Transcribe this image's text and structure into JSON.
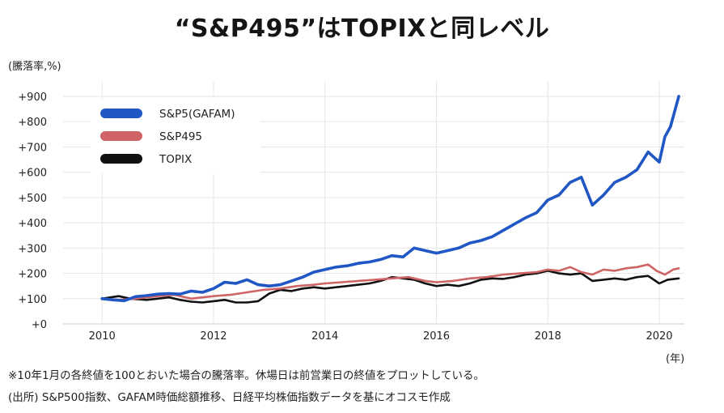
{
  "chart_data": {
    "type": "line",
    "title": "“S&P495”はTOPIXと同レベル",
    "ylabel": "(騰落率,%)",
    "xlabel": "(年)",
    "ylim": [
      0,
      900
    ],
    "xlim": [
      2009.3,
      2020.45
    ],
    "yticks": [
      0,
      100,
      200,
      300,
      400,
      500,
      600,
      700,
      800,
      900
    ],
    "ytick_labels": [
      "+0",
      "+100",
      "+200",
      "+300",
      "+400",
      "+500",
      "+600",
      "+700",
      "+800",
      "+900"
    ],
    "xticks": [
      2010,
      2012,
      2014,
      2016,
      2018,
      2020
    ],
    "xtick_labels": [
      "2010",
      "2012",
      "2014",
      "2016",
      "2018",
      "2020"
    ],
    "grid": true,
    "legend_position": "top-left",
    "series": [
      {
        "name": "S&P5(GAFAM)",
        "color": "#2057c4",
        "points": [
          [
            2010.0,
            100
          ],
          [
            2010.2,
            95
          ],
          [
            2010.4,
            92
          ],
          [
            2010.6,
            108
          ],
          [
            2010.8,
            112
          ],
          [
            2011.0,
            118
          ],
          [
            2011.2,
            120
          ],
          [
            2011.4,
            118
          ],
          [
            2011.6,
            130
          ],
          [
            2011.8,
            125
          ],
          [
            2012.0,
            140
          ],
          [
            2012.2,
            165
          ],
          [
            2012.4,
            160
          ],
          [
            2012.6,
            175
          ],
          [
            2012.8,
            155
          ],
          [
            2013.0,
            150
          ],
          [
            2013.2,
            155
          ],
          [
            2013.4,
            170
          ],
          [
            2013.6,
            185
          ],
          [
            2013.8,
            205
          ],
          [
            2014.0,
            215
          ],
          [
            2014.2,
            225
          ],
          [
            2014.4,
            230
          ],
          [
            2014.6,
            240
          ],
          [
            2014.8,
            245
          ],
          [
            2015.0,
            255
          ],
          [
            2015.2,
            270
          ],
          [
            2015.4,
            265
          ],
          [
            2015.6,
            300
          ],
          [
            2015.8,
            290
          ],
          [
            2016.0,
            280
          ],
          [
            2016.2,
            290
          ],
          [
            2016.4,
            300
          ],
          [
            2016.6,
            320
          ],
          [
            2016.8,
            330
          ],
          [
            2017.0,
            345
          ],
          [
            2017.2,
            370
          ],
          [
            2017.4,
            395
          ],
          [
            2017.6,
            420
          ],
          [
            2017.8,
            440
          ],
          [
            2018.0,
            490
          ],
          [
            2018.2,
            510
          ],
          [
            2018.4,
            560
          ],
          [
            2018.6,
            580
          ],
          [
            2018.8,
            470
          ],
          [
            2019.0,
            510
          ],
          [
            2019.2,
            560
          ],
          [
            2019.4,
            580
          ],
          [
            2019.6,
            610
          ],
          [
            2019.8,
            680
          ],
          [
            2020.0,
            640
          ],
          [
            2020.1,
            740
          ],
          [
            2020.2,
            780
          ],
          [
            2020.35,
            900
          ]
        ]
      },
      {
        "name": "S&P495",
        "color": "#cf6466",
        "points": [
          [
            2010.0,
            100
          ],
          [
            2010.3,
            95
          ],
          [
            2010.6,
            100
          ],
          [
            2010.8,
            105
          ],
          [
            2011.0,
            110
          ],
          [
            2011.3,
            115
          ],
          [
            2011.6,
            100
          ],
          [
            2011.8,
            105
          ],
          [
            2012.0,
            110
          ],
          [
            2012.3,
            115
          ],
          [
            2012.6,
            125
          ],
          [
            2012.9,
            135
          ],
          [
            2013.2,
            140
          ],
          [
            2013.5,
            150
          ],
          [
            2013.8,
            155
          ],
          [
            2014.0,
            160
          ],
          [
            2014.3,
            165
          ],
          [
            2014.6,
            170
          ],
          [
            2014.9,
            175
          ],
          [
            2015.2,
            180
          ],
          [
            2015.5,
            185
          ],
          [
            2015.8,
            170
          ],
          [
            2016.0,
            165
          ],
          [
            2016.3,
            170
          ],
          [
            2016.6,
            180
          ],
          [
            2016.9,
            185
          ],
          [
            2017.2,
            195
          ],
          [
            2017.5,
            200
          ],
          [
            2017.8,
            205
          ],
          [
            2018.0,
            215
          ],
          [
            2018.2,
            210
          ],
          [
            2018.4,
            225
          ],
          [
            2018.6,
            205
          ],
          [
            2018.8,
            195
          ],
          [
            2019.0,
            215
          ],
          [
            2019.2,
            210
          ],
          [
            2019.4,
            220
          ],
          [
            2019.6,
            225
          ],
          [
            2019.8,
            235
          ],
          [
            2019.95,
            210
          ],
          [
            2020.1,
            195
          ],
          [
            2020.25,
            215
          ],
          [
            2020.35,
            220
          ]
        ]
      },
      {
        "name": "TOPIX",
        "color": "#111111",
        "points": [
          [
            2010.0,
            100
          ],
          [
            2010.15,
            105
          ],
          [
            2010.3,
            110
          ],
          [
            2010.5,
            100
          ],
          [
            2010.8,
            95
          ],
          [
            2011.0,
            100
          ],
          [
            2011.2,
            105
          ],
          [
            2011.4,
            95
          ],
          [
            2011.6,
            88
          ],
          [
            2011.8,
            85
          ],
          [
            2012.0,
            90
          ],
          [
            2012.2,
            95
          ],
          [
            2012.4,
            85
          ],
          [
            2012.6,
            85
          ],
          [
            2012.8,
            90
          ],
          [
            2013.0,
            120
          ],
          [
            2013.2,
            135
          ],
          [
            2013.4,
            130
          ],
          [
            2013.6,
            140
          ],
          [
            2013.8,
            145
          ],
          [
            2014.0,
            140
          ],
          [
            2014.2,
            145
          ],
          [
            2014.4,
            150
          ],
          [
            2014.6,
            155
          ],
          [
            2014.8,
            160
          ],
          [
            2015.0,
            170
          ],
          [
            2015.2,
            185
          ],
          [
            2015.4,
            180
          ],
          [
            2015.6,
            175
          ],
          [
            2015.8,
            160
          ],
          [
            2016.0,
            150
          ],
          [
            2016.2,
            155
          ],
          [
            2016.4,
            150
          ],
          [
            2016.6,
            160
          ],
          [
            2016.8,
            175
          ],
          [
            2017.0,
            180
          ],
          [
            2017.2,
            178
          ],
          [
            2017.4,
            185
          ],
          [
            2017.6,
            195
          ],
          [
            2017.8,
            200
          ],
          [
            2018.0,
            210
          ],
          [
            2018.2,
            200
          ],
          [
            2018.4,
            195
          ],
          [
            2018.6,
            200
          ],
          [
            2018.8,
            170
          ],
          [
            2019.0,
            175
          ],
          [
            2019.2,
            180
          ],
          [
            2019.4,
            175
          ],
          [
            2019.6,
            185
          ],
          [
            2019.8,
            190
          ],
          [
            2020.0,
            160
          ],
          [
            2020.15,
            175
          ],
          [
            2020.35,
            180
          ]
        ]
      }
    ]
  },
  "footnotes": {
    "note": "※10年1月の各終値を100とおいた場合の騰落率。休場日は前営業日の終値をプロットしている。",
    "source": "(出所) S&P500指数、GAFAM時価総額推移、日経平均株価指数データを基にオコスモ作成"
  }
}
